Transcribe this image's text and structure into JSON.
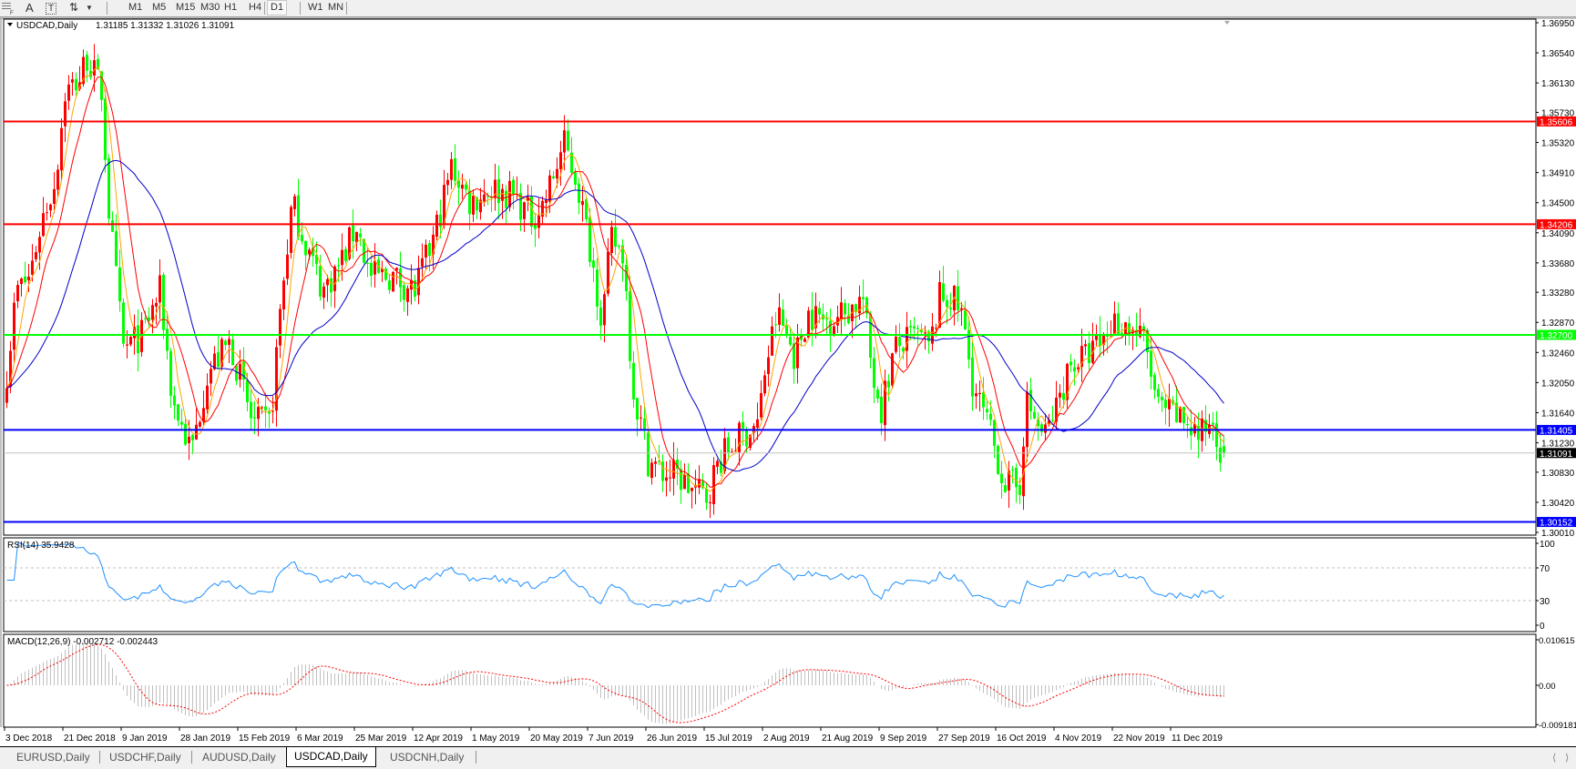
{
  "toolbar": {
    "icons": [
      "grid-icon",
      "text-icon",
      "text-label-icon",
      "arrows-icon",
      "dropdown-icon"
    ],
    "text_icon_glyph": "A",
    "text_label_glyph": "T",
    "timeframes": [
      "M1",
      "M5",
      "M15",
      "M30",
      "H1",
      "H4",
      "D1",
      "W1",
      "MN"
    ],
    "active_timeframe": "D1"
  },
  "chart": {
    "title": "USDCAD,Daily",
    "ohlc": "1.31185 1.31332 1.31026 1.31091"
  },
  "chart_data": {
    "type": "candlestick",
    "symbol": "USDCAD",
    "timeframe": "Daily",
    "price_axis_ticks": [
      "1.36950",
      "1.36540",
      "1.36130",
      "1.35730",
      "1.35320",
      "1.34910",
      "1.34500",
      "1.34090",
      "1.33680",
      "1.33280",
      "1.32870",
      "1.32460",
      "1.32050",
      "1.31640",
      "1.31230",
      "1.30830",
      "1.30420",
      "1.30010"
    ],
    "ylim": [
      1.3001,
      1.3695
    ],
    "date_labels": [
      "3 Dec 2018",
      "21 Dec 2018",
      "9 Jan 2019",
      "28 Jan 2019",
      "15 Feb 2019",
      "6 Mar 2019",
      "25 Mar 2019",
      "12 Apr 2019",
      "1 May 2019",
      "20 May 2019",
      "7 Jun 2019",
      "26 Jun 2019",
      "15 Jul 2019",
      "2 Aug 2019",
      "21 Aug 2019",
      "9 Sep 2019",
      "27 Sep 2019",
      "16 Oct 2019",
      "4 Nov 2019",
      "22 Nov 2019",
      "11 Dec 2019"
    ],
    "approx_closes": [
      [
        "3 Dec 2018",
        1.322
      ],
      [
        "6 Dec 2018",
        1.333
      ],
      [
        "10 Dec 2018",
        1.335
      ],
      [
        "14 Dec 2018",
        1.343
      ],
      [
        "18 Dec 2018",
        1.348
      ],
      [
        "21 Dec 2018",
        1.36
      ],
      [
        "26 Dec 2018",
        1.362
      ],
      [
        "28 Dec 2018",
        1.365
      ],
      [
        "2 Jan 2019",
        1.36
      ],
      [
        "4 Jan 2019",
        1.345
      ],
      [
        "9 Jan 2019",
        1.325
      ],
      [
        "15 Jan 2019",
        1.327
      ],
      [
        "21 Jan 2019",
        1.333
      ],
      [
        "25 Jan 2019",
        1.318
      ],
      [
        "31 Jan 2019",
        1.311
      ],
      [
        "5 Feb 2019",
        1.322
      ],
      [
        "12 Feb 2019",
        1.326
      ],
      [
        "19 Feb 2019",
        1.315
      ],
      [
        "25 Feb 2019",
        1.315
      ],
      [
        "28 Feb 2019",
        1.33
      ],
      [
        "4 Mar 2019",
        1.345
      ],
      [
        "8 Mar 2019",
        1.34
      ],
      [
        "14 Mar 2019",
        1.333
      ],
      [
        "20 Mar 2019",
        1.337
      ],
      [
        "25 Mar 2019",
        1.342
      ],
      [
        "29 Mar 2019",
        1.335
      ],
      [
        "5 Apr 2019",
        1.335
      ],
      [
        "12 Apr 2019",
        1.333
      ],
      [
        "18 Apr 2019",
        1.34
      ],
      [
        "24 Apr 2019",
        1.35
      ],
      [
        "30 Apr 2019",
        1.345
      ],
      [
        "7 May 2019",
        1.347
      ],
      [
        "14 May 2019",
        1.346
      ],
      [
        "20 May 2019",
        1.343
      ],
      [
        "24 May 2019",
        1.345
      ],
      [
        "30 May 2019",
        1.353
      ],
      [
        "3 Jun 2019",
        1.348
      ],
      [
        "7 Jun 2019",
        1.339
      ],
      [
        "11 Jun 2019",
        1.329
      ],
      [
        "14 Jun 2019",
        1.34
      ],
      [
        "18 Jun 2019",
        1.338
      ],
      [
        "21 Jun 2019",
        1.32
      ],
      [
        "26 Jun 2019",
        1.31
      ],
      [
        "1 Jul 2019",
        1.308
      ],
      [
        "5 Jul 2019",
        1.308
      ],
      [
        "10 Jul 2019",
        1.306
      ],
      [
        "15 Jul 2019",
        1.305
      ],
      [
        "19 Jul 2019",
        1.31
      ],
      [
        "25 Jul 2019",
        1.313
      ],
      [
        "31 Jul 2019",
        1.315
      ],
      [
        "2 Aug 2019",
        1.322
      ],
      [
        "6 Aug 2019",
        1.33
      ],
      [
        "12 Aug 2019",
        1.324
      ],
      [
        "16 Aug 2019",
        1.33
      ],
      [
        "21 Aug 2019",
        1.329
      ],
      [
        "28 Aug 2019",
        1.33
      ],
      [
        "3 Sep 2019",
        1.332
      ],
      [
        "6 Sep 2019",
        1.322
      ],
      [
        "9 Sep 2019",
        1.317
      ],
      [
        "13 Sep 2019",
        1.325
      ],
      [
        "20 Sep 2019",
        1.327
      ],
      [
        "24 Sep 2019",
        1.325
      ],
      [
        "27 Sep 2019",
        1.332
      ],
      [
        "1 Oct 2019",
        1.332
      ],
      [
        "4 Oct 2019",
        1.33
      ],
      [
        "8 Oct 2019",
        1.32
      ],
      [
        "14 Oct 2019",
        1.313
      ],
      [
        "18 Oct 2019",
        1.307
      ],
      [
        "23 Oct 2019",
        1.306
      ],
      [
        "25 Oct 2019",
        1.318
      ],
      [
        "31 Oct 2019",
        1.313
      ],
      [
        "4 Nov 2019",
        1.317
      ],
      [
        "8 Nov 2019",
        1.323
      ],
      [
        "13 Nov 2019",
        1.324
      ],
      [
        "18 Nov 2019",
        1.326
      ],
      [
        "22 Nov 2019",
        1.329
      ],
      [
        "27 Nov 2019",
        1.328
      ],
      [
        "2 Dec 2019",
        1.326
      ],
      [
        "6 Dec 2019",
        1.317
      ],
      [
        "11 Dec 2019",
        1.316
      ],
      [
        "16 Dec 2019",
        1.315
      ],
      [
        "20 Dec 2019",
        1.313
      ],
      [
        "24 Dec 2019",
        1.316
      ],
      [
        "27 Dec 2019",
        1.3109
      ]
    ],
    "last_bar": {
      "open": 1.31185,
      "high": 1.31332,
      "low": 1.31026,
      "close": 1.31091
    },
    "bull_color": "#ff0000",
    "bear_color": "#00ff00",
    "moving_averages": [
      {
        "color": "#ffa500"
      },
      {
        "color": "#ff0000"
      },
      {
        "color": "#0000c8"
      }
    ],
    "horizontal_lines": [
      {
        "price": "1.35606",
        "color": "#ff0000",
        "label_text": "#ffffff"
      },
      {
        "price": "1.34206",
        "color": "#ff0000",
        "label_text": "#ffffff"
      },
      {
        "price": "1.32700",
        "color": "#00ff00",
        "label_text": "#ffffff"
      },
      {
        "price": "1.31405",
        "color": "#0000ff",
        "label_text": "#ffffff"
      },
      {
        "price": "1.30152",
        "color": "#0000ff",
        "label_text": "#ffffff"
      }
    ],
    "current_price": {
      "price": "1.31091",
      "color": "#000000",
      "line_color": "#c0c0c0"
    },
    "rsi": {
      "label": "RSI(14) 35.9428",
      "axis": [
        "100",
        "70",
        "30",
        "0"
      ],
      "levels": [
        70,
        30
      ],
      "color": "#1e90ff"
    },
    "macd": {
      "label": "MACD(12,26,9) -0.002712 -0.002443",
      "axis": [
        "0.010615",
        "0.00",
        "-0.009181"
      ],
      "histogram_color": "#c0c0c0",
      "signal_color": "#ff0000"
    }
  },
  "tabs": [
    "EURUSD,Daily",
    "USDCHF,Daily",
    "AUDUSD,Daily",
    "USDCAD,Daily",
    "USDCNH,Daily"
  ],
  "active_tab": "USDCAD,Daily",
  "scroll": {
    "left": "⟨",
    "right": "⟩"
  }
}
